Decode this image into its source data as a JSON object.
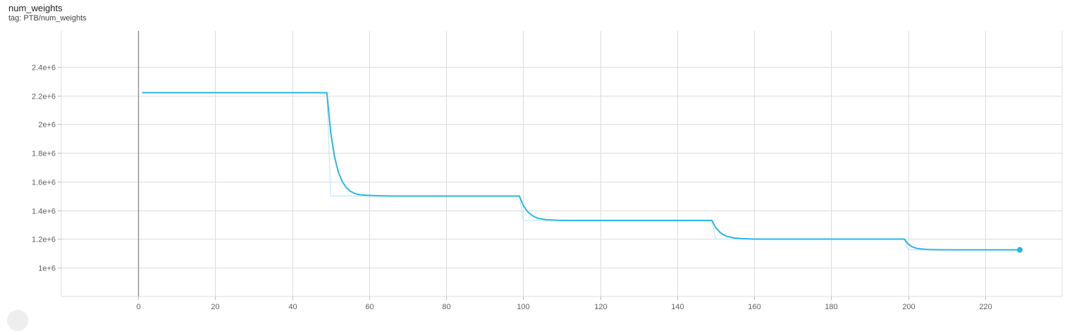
{
  "card": {
    "title": "num_weights",
    "tag": "tag: PTB/num_weights"
  },
  "colors": {
    "smoothed": "#29b6e8",
    "raw": "#bfe9f8",
    "grid": "#dcdcdc",
    "y_axis_zero": "#888888"
  },
  "chart_data": {
    "type": "line",
    "title": "num_weights",
    "xlabel": "",
    "ylabel": "",
    "xlim": [
      -20,
      240
    ],
    "ylim": [
      800000,
      2650000
    ],
    "x_ticks": [
      0,
      20,
      40,
      60,
      80,
      100,
      120,
      140,
      160,
      180,
      200,
      220
    ],
    "x_tick_labels": [
      "0",
      "20",
      "40",
      "60",
      "80",
      "100",
      "120",
      "140",
      "160",
      "180",
      "200",
      "220"
    ],
    "y_ticks": [
      1000000,
      1200000,
      1400000,
      1600000,
      1800000,
      2000000,
      2200000,
      2400000
    ],
    "y_tick_labels": [
      "1e+6",
      "1.2e+6",
      "1.4e+6",
      "1.6e+6",
      "1.8e+6",
      "2e+6",
      "2.2e+6",
      "2.4e+6"
    ],
    "grid": true,
    "series": [
      {
        "role": "raw",
        "x": [
          1,
          49,
          50,
          99,
          100,
          149,
          150,
          199,
          200,
          229
        ],
        "y": [
          2220000,
          2220000,
          1500000,
          1500000,
          1330000,
          1330000,
          1200000,
          1200000,
          1125000,
          1125000
        ]
      },
      {
        "role": "smoothed",
        "x": [
          1,
          49,
          50,
          51,
          52,
          53,
          54,
          55,
          56,
          57,
          58,
          60,
          63,
          66,
          99,
          100,
          101,
          102,
          103,
          104,
          106,
          109,
          112,
          149,
          150,
          151,
          152,
          153,
          155,
          157,
          160,
          199,
          200,
          201,
          202,
          203,
          205,
          208,
          212,
          229
        ],
        "y": [
          2220000,
          2220000,
          1940000,
          1770000,
          1665000,
          1600000,
          1560000,
          1535000,
          1520000,
          1512000,
          1508000,
          1504000,
          1501000,
          1500000,
          1500000,
          1435000,
          1395000,
          1370000,
          1354000,
          1344000,
          1335000,
          1331000,
          1330000,
          1330000,
          1280000,
          1250000,
          1230000,
          1218000,
          1207000,
          1203000,
          1200000,
          1200000,
          1165000,
          1147000,
          1137000,
          1132000,
          1128000,
          1126000,
          1125000,
          1125000
        ]
      }
    ]
  }
}
